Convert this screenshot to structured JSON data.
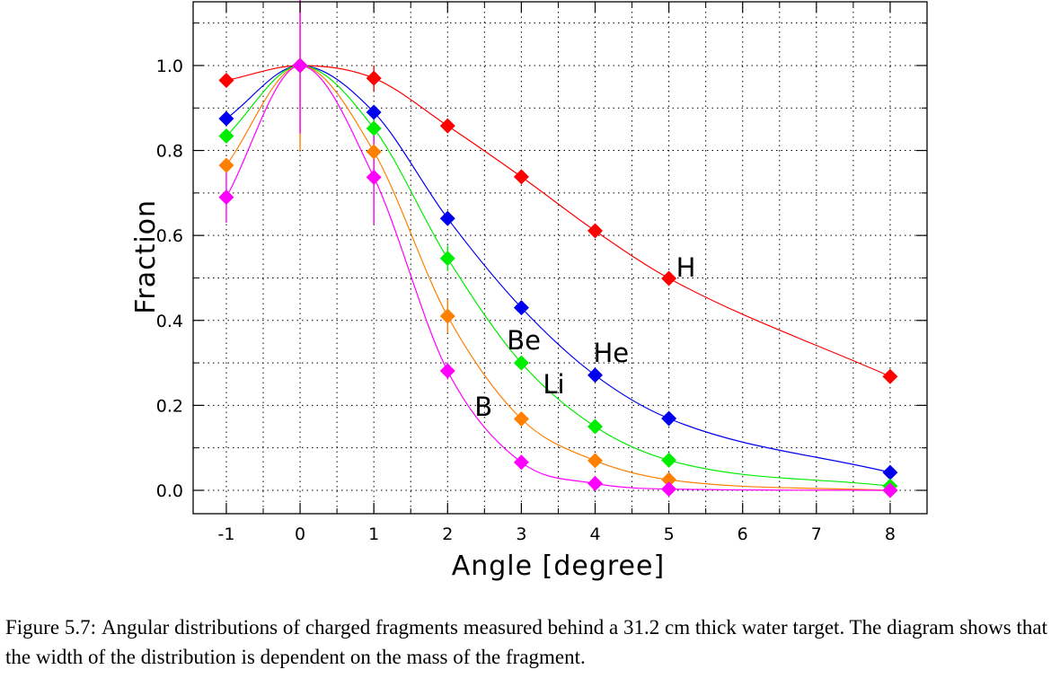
{
  "caption": {
    "label": "Figure 5.7:",
    "text": "Angular distributions of charged fragments measured behind a 31.2 cm thick water target. The diagram shows that the width of the distribution is dependent on the mass of the fragment."
  },
  "chart_data": {
    "type": "line",
    "title": "",
    "xlabel": "Angle [degree]",
    "ylabel": "Fraction",
    "x_ticks": [
      -1,
      0,
      1,
      2,
      3,
      4,
      5,
      6,
      7,
      8
    ],
    "y_ticks": [
      0.0,
      0.2,
      0.4,
      0.6,
      0.8,
      1.0
    ],
    "y_tick_labels": [
      "0.0",
      "0.2",
      "0.4",
      "0.6",
      "0.8",
      "1.0"
    ],
    "xlim": [
      -1.45,
      8.5
    ],
    "ylim": [
      -0.055,
      1.15
    ],
    "grid": true,
    "legend": "none",
    "series": [
      {
        "name": "H",
        "color": "#ff0000",
        "x": [
          -1,
          0,
          1,
          2,
          3,
          4,
          5,
          8
        ],
        "y": [
          0.965,
          1.0,
          0.97,
          0.858,
          0.738,
          0.611,
          0.499,
          0.268
        ],
        "err": [
          0,
          0,
          0.03,
          0,
          0,
          0,
          0,
          0
        ]
      },
      {
        "name": "He",
        "color": "#0000ee",
        "x": [
          -1,
          0,
          1,
          2,
          3,
          4,
          5,
          8
        ],
        "y": [
          0.875,
          1.0,
          0.89,
          0.64,
          0.43,
          0.271,
          0.169,
          0.042
        ],
        "err": [
          0,
          0,
          0,
          0,
          0,
          0,
          0,
          0
        ]
      },
      {
        "name": "Li",
        "color": "#00ee00",
        "x": [
          -1,
          0,
          1,
          2,
          3,
          4,
          5,
          8
        ],
        "y": [
          0.834,
          1.0,
          0.852,
          0.546,
          0.3,
          0.15,
          0.071,
          0.01
        ],
        "err": [
          0,
          0,
          0.03,
          0.03,
          0,
          0,
          0,
          0
        ]
      },
      {
        "name": "Be",
        "color": "#ff7f00",
        "x": [
          -1,
          0,
          1,
          2,
          3,
          4,
          5,
          8
        ],
        "y": [
          0.765,
          1.0,
          0.797,
          0.41,
          0.168,
          0.07,
          0.025,
          0.0
        ],
        "err": [
          0,
          0.2,
          0.05,
          0.04,
          0,
          0,
          0,
          0
        ]
      },
      {
        "name": "B",
        "color": "#ff00ff",
        "x": [
          -1,
          0,
          1,
          2,
          3,
          4,
          5,
          8
        ],
        "y": [
          0.69,
          1.0,
          0.737,
          0.281,
          0.066,
          0.016,
          0.003,
          0.0
        ],
        "err": [
          0.06,
          0.16,
          0.11,
          0.02,
          0,
          0,
          0,
          0
        ]
      }
    ],
    "annotations": [
      {
        "text": "H",
        "series": "H"
      },
      {
        "text": "He",
        "series": "He"
      },
      {
        "text": "Li",
        "series": "Li"
      },
      {
        "text": "Be",
        "series": "Be"
      },
      {
        "text": "B",
        "series": "B"
      }
    ]
  }
}
